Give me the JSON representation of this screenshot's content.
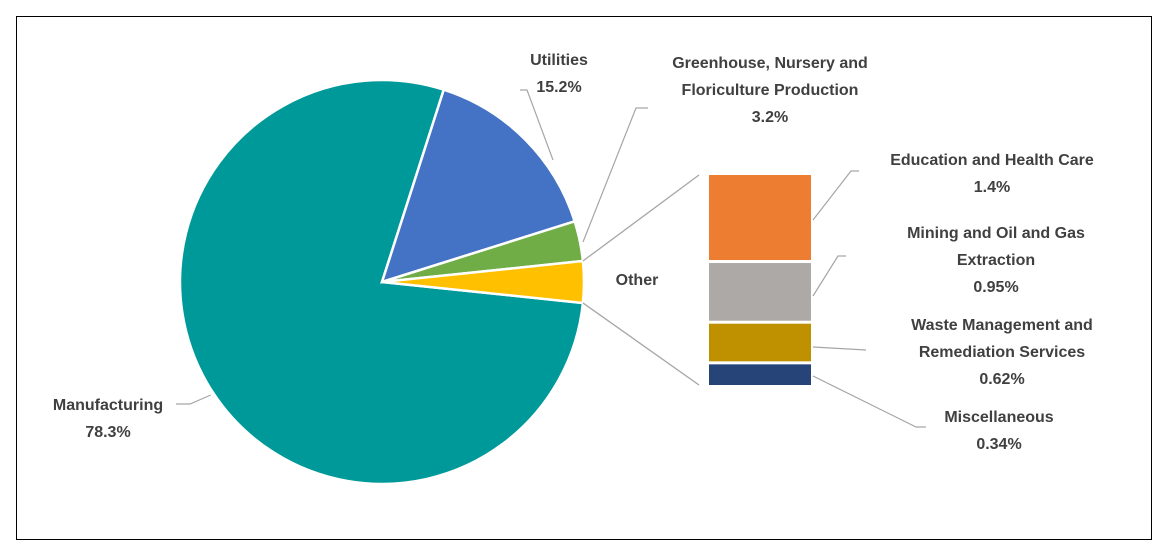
{
  "chart_data": {
    "type": "pie",
    "subtype": "bar-of-pie",
    "title": "",
    "main_slices": [
      {
        "name": "Manufacturing",
        "value": 78.3,
        "label": "78.3%",
        "color": "#009999"
      },
      {
        "name": "Utilities",
        "value": 15.2,
        "label": "15.2%",
        "color": "#4472C4"
      },
      {
        "name": "Greenhouse, Nursery and Floriculture Production",
        "value": 3.2,
        "label": "3.2%",
        "color": "#70AD47"
      },
      {
        "name": "Other",
        "value": 3.31,
        "label": "",
        "color": "#FFC000"
      }
    ],
    "other_label": "Other",
    "other_breakdown": [
      {
        "name": "Education and Health Care",
        "value": 1.4,
        "label": "1.4%",
        "color": "#ED7D31"
      },
      {
        "name": "Mining and Oil and Gas Extraction",
        "value": 0.95,
        "label": "0.95%",
        "color": "#ACA9A7"
      },
      {
        "name": "Waste Management and Remediation Services",
        "value": 0.62,
        "label": "0.62%",
        "color": "#BF9000"
      },
      {
        "name": "Miscellaneous",
        "value": 0.34,
        "label": "0.34%",
        "color": "#264478"
      }
    ],
    "legend": "none",
    "label_text_color": "#404040",
    "leader_line_color": "#A6A6A6"
  }
}
